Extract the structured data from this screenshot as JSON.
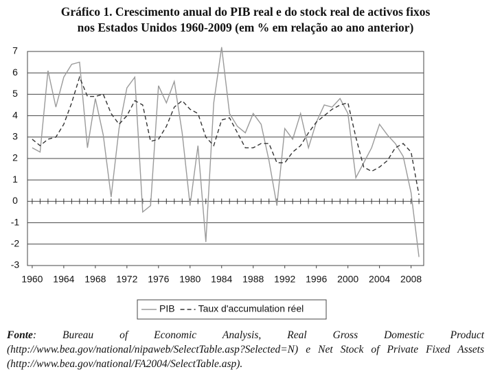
{
  "chart_data": {
    "type": "line",
    "title_lines": [
      "Gráfico 1. Crescimento anual do PIB real e do stock real de activos fixos",
      "nos Estados Unidos 1960-2009 (em % em relação ao ano anterior)"
    ],
    "x": [
      1960,
      1961,
      1962,
      1963,
      1964,
      1965,
      1966,
      1967,
      1968,
      1969,
      1970,
      1971,
      1972,
      1973,
      1974,
      1975,
      1976,
      1977,
      1978,
      1979,
      1980,
      1981,
      1982,
      1983,
      1984,
      1985,
      1986,
      1987,
      1988,
      1989,
      1990,
      1991,
      1992,
      1993,
      1994,
      1995,
      1996,
      1997,
      1998,
      1999,
      2000,
      2001,
      2002,
      2003,
      2004,
      2005,
      2006,
      2007,
      2008,
      2009
    ],
    "series": [
      {
        "name": "PIB",
        "color": "#9a9a9a",
        "dash": false,
        "values": [
          2.5,
          2.3,
          6.1,
          4.4,
          5.8,
          6.4,
          6.5,
          2.5,
          4.8,
          3.1,
          0.2,
          3.4,
          5.3,
          5.8,
          -0.5,
          -0.2,
          5.4,
          4.6,
          5.6,
          3.2,
          -0.2,
          2.6,
          -1.9,
          4.6,
          7.2,
          4.1,
          3.5,
          3.2,
          4.1,
          3.6,
          1.9,
          -0.2,
          3.4,
          2.9,
          4.1,
          2.5,
          3.7,
          4.5,
          4.4,
          4.8,
          4.1,
          1.1,
          1.8,
          2.5,
          3.6,
          3.1,
          2.7,
          2.1,
          0.4,
          -2.6
        ]
      },
      {
        "name": "Taux d'accumulation réel",
        "color": "#333333",
        "dash": true,
        "values": [
          2.9,
          2.6,
          2.9,
          3.0,
          3.6,
          4.6,
          5.8,
          4.9,
          4.9,
          5.0,
          4.1,
          3.6,
          4.0,
          4.7,
          4.5,
          2.8,
          2.9,
          3.5,
          4.4,
          4.7,
          4.3,
          4.1,
          3.0,
          2.6,
          3.8,
          3.9,
          3.2,
          2.5,
          2.5,
          2.7,
          2.7,
          1.8,
          1.8,
          2.3,
          2.6,
          3.2,
          3.7,
          4.0,
          4.3,
          4.5,
          4.6,
          3.0,
          1.6,
          1.4,
          1.6,
          1.9,
          2.5,
          2.7,
          2.3,
          0.3
        ]
      }
    ],
    "xlim": [
      1959.4,
      2009.6
    ],
    "xticks": [
      1960,
      1964,
      1968,
      1972,
      1976,
      1980,
      1984,
      1988,
      1992,
      1996,
      2000,
      2004,
      2008
    ],
    "ylim": [
      -3,
      7
    ],
    "yticks": [
      -3,
      -2,
      -1,
      0,
      1,
      2,
      3,
      4,
      5,
      6,
      7
    ],
    "grid": true
  },
  "footer": {
    "source_label": "Fonte",
    "text": ": Bureau of Economic Analysis, Real Gross Domestic Product (http://www.bea.gov/national/nipaweb/SelectTable.asp?Selected=N) e Net Stock of Private Fixed Assets (http://www.bea.gov/national/FA2004/SelectTable.asp)."
  }
}
